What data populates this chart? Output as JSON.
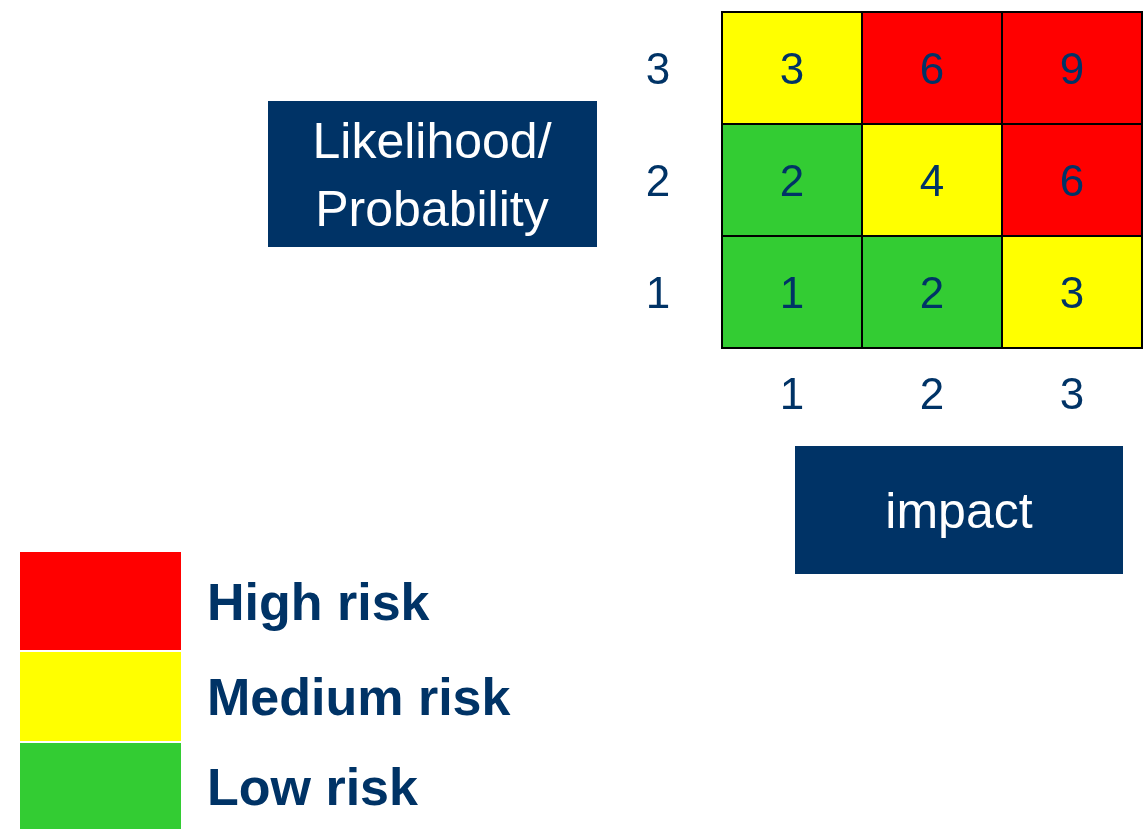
{
  "chart_data": {
    "type": "heatmap",
    "categories": [
      "1",
      "2",
      "3"
    ],
    "y_categories": [
      "3",
      "2",
      "1"
    ],
    "cells": [
      [
        3,
        6,
        9
      ],
      [
        2,
        4,
        6
      ],
      [
        1,
        2,
        3
      ]
    ],
    "colors": [
      [
        "#ffff00",
        "#ff0000",
        "#ff0000"
      ],
      [
        "#33cc33",
        "#ffff00",
        "#ff0000"
      ],
      [
        "#33cc33",
        "#33cc33",
        "#ffff00"
      ]
    ],
    "xlabel": "impact",
    "ylabel": "Likelihood/Probability",
    "data_labels": true,
    "series": [
      {
        "name": "High risk",
        "color": "#ff0000",
        "values": [
          null,
          null,
          null
        ]
      },
      {
        "name": "Medium risk",
        "color": "#ffff00",
        "values": [
          null,
          null,
          null
        ]
      },
      {
        "name": "Low risk",
        "color": "#33cc33",
        "values": [
          null,
          null,
          null
        ]
      }
    ],
    "legend": "bottom left"
  }
}
